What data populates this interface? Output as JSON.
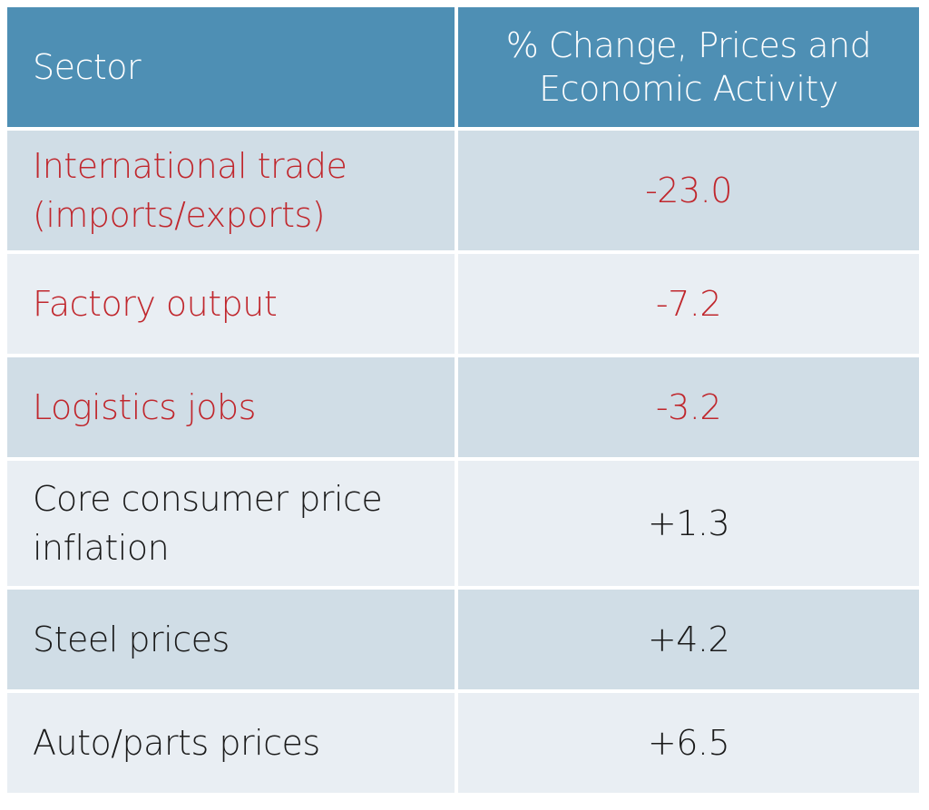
{
  "header": {
    "sector": "Sector",
    "change_line1": "% Change, Prices and",
    "change_line2": "Economic Activity"
  },
  "rows": [
    {
      "sector_line1": "International trade",
      "sector_line2": "(imports/exports)",
      "value": "-23.0",
      "status": "negative"
    },
    {
      "sector_line1": "Factory output",
      "sector_line2": "",
      "value": "-7.2",
      "status": "negative"
    },
    {
      "sector_line1": "Logistics jobs",
      "sector_line2": "",
      "value": "-3.2",
      "status": "negative"
    },
    {
      "sector_line1": "Core consumer price",
      "sector_line2": "inflation",
      "value": "+1.3",
      "status": "positive"
    },
    {
      "sector_line1": "Steel prices",
      "sector_line2": "",
      "value": "+4.2",
      "status": "positive"
    },
    {
      "sector_line1": "Auto/parts prices",
      "sector_line2": "",
      "value": "+6.5",
      "status": "positive"
    }
  ],
  "colors": {
    "header_bg": "#4e8fb4",
    "row_dark": "#d0dde6",
    "row_light": "#e9eef3",
    "negative_text": "#c0272d",
    "positive_text": "#1a1a1a"
  }
}
